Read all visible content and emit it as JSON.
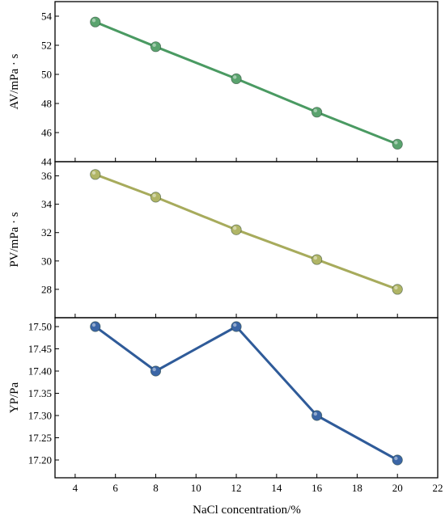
{
  "chart_data": [
    {
      "type": "line",
      "x": [
        5,
        8,
        12,
        16,
        20
      ],
      "series": [
        {
          "values": [
            53.6,
            51.9,
            49.7,
            47.4,
            45.2
          ],
          "color": "#4a9a62",
          "marker_color": "#5aa36e"
        }
      ],
      "ylabel": "AV/mPa · s",
      "ylim": [
        44,
        55
      ],
      "yticks": [
        44,
        46,
        48,
        50,
        52,
        54
      ],
      "ytick_labels": [
        "44",
        "46",
        "48",
        "50",
        "52",
        "54"
      ]
    },
    {
      "type": "line",
      "x": [
        5,
        8,
        12,
        16,
        20
      ],
      "series": [
        {
          "values": [
            36.1,
            34.5,
            32.2,
            30.1,
            28.0
          ],
          "color": "#a7ab5c",
          "marker_color": "#b0b566"
        }
      ],
      "ylabel": "PV/mPa · s",
      "ylim": [
        26,
        37
      ],
      "yticks": [
        28,
        30,
        32,
        34,
        36
      ],
      "ytick_labels": [
        "28",
        "30",
        "32",
        "34",
        "36"
      ]
    },
    {
      "type": "line",
      "x": [
        5,
        8,
        12,
        16,
        20
      ],
      "series": [
        {
          "values": [
            17.5,
            17.4,
            17.5,
            17.3,
            17.2
          ],
          "color": "#2f5b99",
          "marker_color": "#3b66a6"
        }
      ],
      "ylabel": "YP/Pa",
      "ylim": [
        17.16,
        17.52
      ],
      "yticks": [
        17.2,
        17.25,
        17.3,
        17.35,
        17.4,
        17.45,
        17.5
      ],
      "ytick_labels": [
        "17.20",
        "17.25",
        "17.30",
        "17.35",
        "17.40",
        "17.45",
        "17.50"
      ]
    }
  ],
  "shared_x": {
    "xlabel": "NaCl concentration/%",
    "xlim": [
      3,
      22
    ],
    "xticks": [
      4,
      6,
      8,
      10,
      12,
      14,
      16,
      18,
      20,
      22
    ],
    "xtick_labels": [
      "4",
      "6",
      "8",
      "10",
      "12",
      "14",
      "16",
      "18",
      "20",
      "22"
    ]
  }
}
